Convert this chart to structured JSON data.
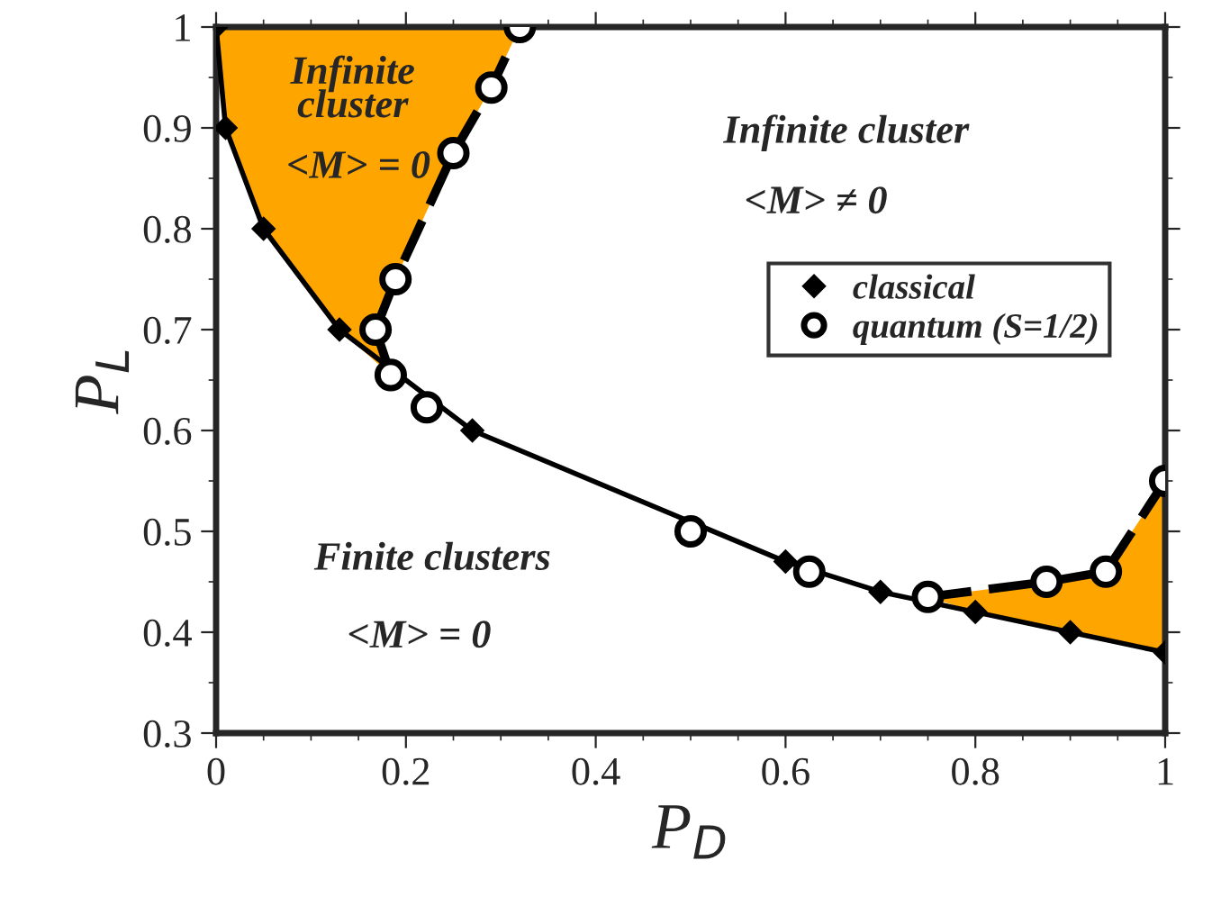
{
  "chart_data": {
    "type": "line",
    "xlabel": "P$_{D}$",
    "ylabel": "P$_{L}$",
    "xlim": [
      0,
      1
    ],
    "ylim": [
      0.3,
      1
    ],
    "xticks": [
      0,
      {
        "value": 0.05,
        "label": null
      },
      {
        "value": 0.1,
        "label": null
      },
      {
        "value": 0.15,
        "label": null
      },
      0.2,
      {
        "value": 0.25,
        "label": null
      },
      {
        "value": 0.3,
        "label": null
      },
      {
        "value": 0.35,
        "label": null
      },
      0.4,
      {
        "value": 0.45,
        "label": null
      },
      {
        "value": 0.5,
        "label": null
      },
      {
        "value": 0.55,
        "label": null
      },
      0.6,
      {
        "value": 0.65,
        "label": null
      },
      {
        "value": 0.7,
        "label": null
      },
      {
        "value": 0.75,
        "label": null
      },
      0.8,
      {
        "value": 0.85,
        "label": null
      },
      {
        "value": 0.9,
        "label": null
      },
      {
        "value": 0.95,
        "label": null
      },
      1
    ],
    "yticks": [
      0.3,
      {
        "value": 0.35,
        "label": null
      },
      0.4,
      {
        "value": 0.45,
        "label": null
      },
      0.5,
      {
        "value": 0.55,
        "label": null
      },
      0.6,
      {
        "value": 0.65,
        "label": null
      },
      0.7,
      {
        "value": 0.75,
        "label": null
      },
      0.8,
      {
        "value": 0.85,
        "label": null
      },
      0.9,
      {
        "value": 0.95,
        "label": null
      },
      1
    ],
    "grid": false,
    "legend": "right",
    "series": [
      {
        "name": "classical",
        "marker": "diamond",
        "line_style": "solid",
        "color": "#000000",
        "x": [
          0,
          0.01,
          0.05,
          0.13,
          0.27,
          0.6,
          0.7,
          0.8,
          0.9,
          1
        ],
        "values": [
          1,
          0.9,
          0.8,
          0.7,
          0.6,
          0.47,
          0.44,
          0.42,
          0.4,
          0.38
        ]
      },
      {
        "marker": "none",
        "line_style": "dashed",
        "color": "#000000",
        "x": [
          0.184,
          0.168,
          0.189,
          0.25,
          0.29,
          0.32
        ],
        "values": [
          0.655,
          0.7,
          0.75,
          0.875,
          0.94,
          1
        ]
      },
      {
        "marker": "none",
        "line_style": "dashed",
        "color": "#000000",
        "x": [
          0.75,
          0.875,
          0.9375,
          1
        ],
        "values": [
          0.435,
          0.45,
          0.46,
          0.55
        ]
      },
      {
        "name": "quantum (S=1/2)",
        "type": "scatter",
        "marker": "circle",
        "color": "#000000",
        "x": [
          0.32,
          0.29,
          0.25,
          0.189,
          0.168,
          0.184,
          0.222,
          0.5,
          0.625,
          0.75,
          0.875,
          0.9375,
          1
        ],
        "values": [
          1,
          0.94,
          0.875,
          0.75,
          0.7,
          0.655,
          0.623,
          0.5,
          0.46,
          0.435,
          0.45,
          0.46,
          0.55
        ],
        "errors": [
          0.01,
          0.01,
          0.01,
          0.01,
          0.01,
          0.01,
          0.01,
          0.01,
          0.01,
          0.01,
          0.01,
          0.01,
          0.01
        ],
        "xerrors": [
          0.01,
          0.01,
          0.01,
          0.01,
          0.01,
          0.01,
          0.01,
          0.01,
          0.01,
          0.01,
          0.01,
          0.01,
          0.01
        ]
      }
    ],
    "annotations": [
      "Infinite\ncluster",
      "<M> = 0",
      "Infinite cluster",
      "<M> ≠ 0",
      "Finite clusters",
      "<M> = 0"
    ]
  }
}
